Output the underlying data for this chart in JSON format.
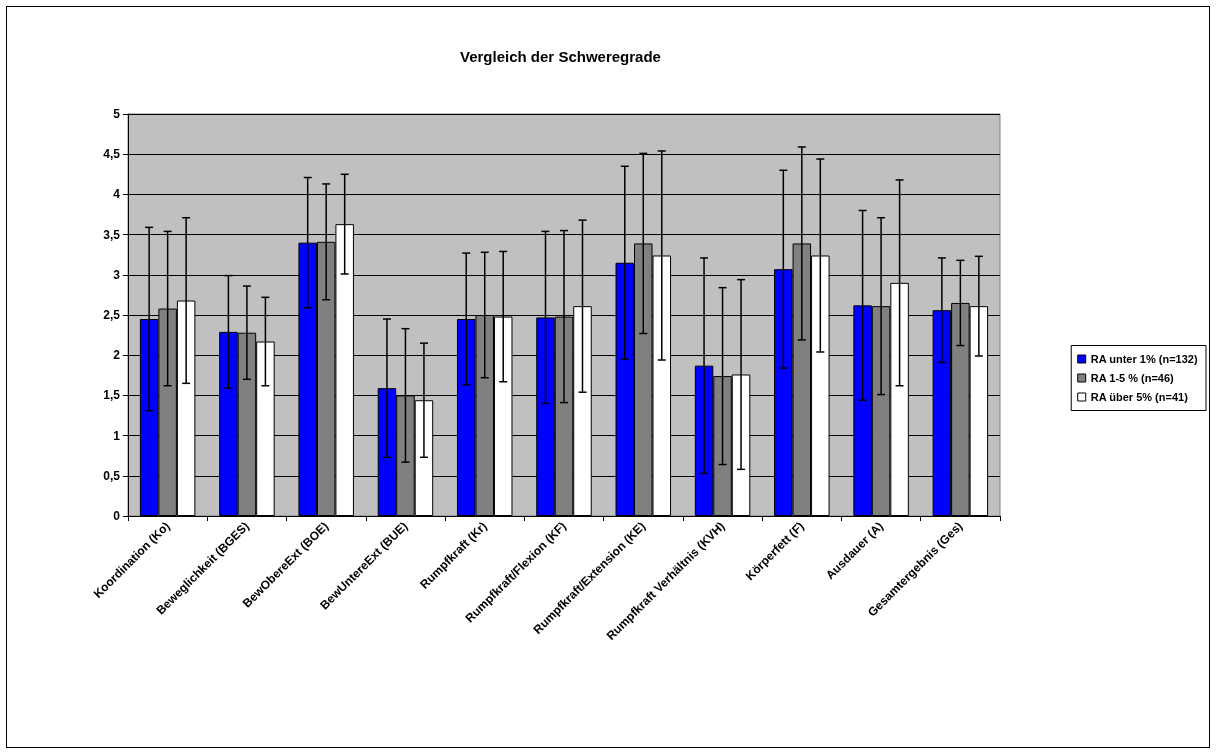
{
  "chart_data": {
    "type": "bar",
    "title": "Vergleich der Schweregrade",
    "categories": [
      "Koordination (Ko)",
      "Beweglichkeit (BGES)",
      "BewObereExt (BOE)",
      "BewUntereExt (BUE)",
      "Rumpfkraft (Kr)",
      "Rumpfkraft/Flexion (KF)",
      "Rumpfkraft/Extension (KE)",
      "Rumpfkraft Verhältnis (KVH)",
      "Körperfett (F)",
      "Ausdauer (A)",
      "Gesamtergebnis (Ges)"
    ],
    "series": [
      {
        "name": "RA unter 1% (n=132)",
        "color": "#0000ff",
        "values": [
          2.45,
          2.29,
          3.4,
          1.59,
          2.45,
          2.47,
          3.15,
          1.87,
          3.07,
          2.62,
          2.56
        ],
        "errors": [
          1.14,
          0.7,
          0.81,
          0.86,
          0.82,
          1.07,
          1.2,
          1.34,
          1.23,
          1.18,
          0.65
        ]
      },
      {
        "name": "RA 1-5 % (n=46)",
        "color": "#808080",
        "values": [
          2.58,
          2.28,
          3.41,
          1.5,
          2.5,
          2.48,
          3.39,
          1.74,
          3.39,
          2.61,
          2.65
        ],
        "errors": [
          0.96,
          0.58,
          0.72,
          0.83,
          0.78,
          1.07,
          1.12,
          1.1,
          1.2,
          1.1,
          0.53
        ]
      },
      {
        "name": "RA über 5% (n=41)",
        "color": "#ffffff",
        "values": [
          2.68,
          2.17,
          3.63,
          1.44,
          2.48,
          2.61,
          3.24,
          1.76,
          3.24,
          2.9,
          2.61
        ],
        "errors": [
          1.03,
          0.55,
          0.62,
          0.71,
          0.81,
          1.07,
          1.3,
          1.18,
          1.2,
          1.28,
          0.62
        ]
      }
    ],
    "ylim": [
      0,
      5
    ],
    "yticks": [
      0,
      {
        "value": 0.5,
        "label": "0,5"
      },
      1,
      {
        "value": 1.5,
        "label": "1,5"
      },
      2,
      {
        "value": 2.5,
        "label": "2,5"
      },
      3,
      {
        "value": 3.5,
        "label": "3,5"
      },
      4,
      {
        "value": 4.5,
        "label": "4,5"
      },
      5
    ],
    "grid": "y",
    "legend": "right"
  }
}
